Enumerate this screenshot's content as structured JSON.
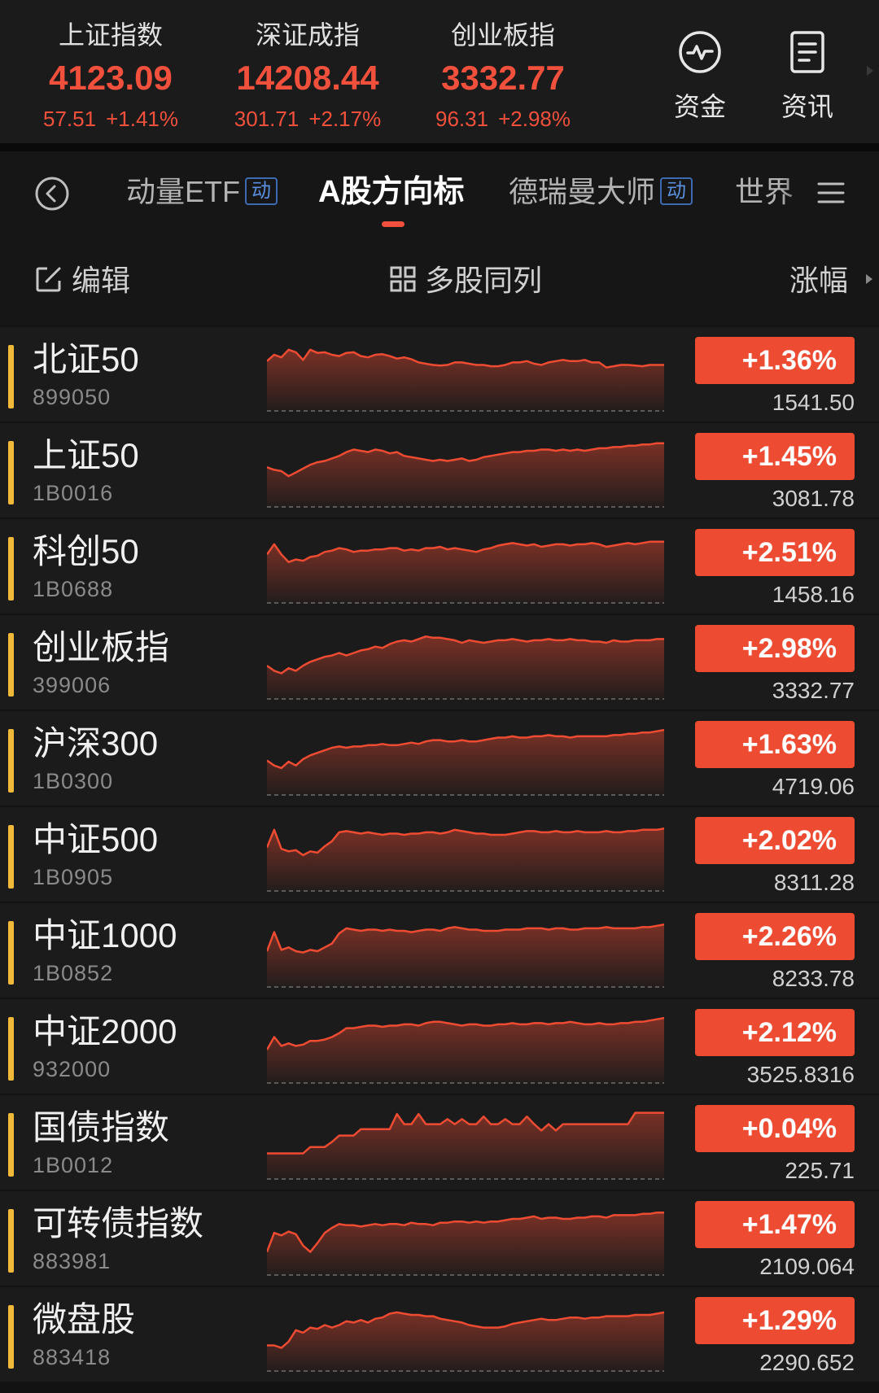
{
  "indices": [
    {
      "name": "上证指数",
      "price": "4123.09",
      "change": "57.51",
      "percent": "+1.41%"
    },
    {
      "name": "深证成指",
      "price": "14208.44",
      "change": "301.71",
      "percent": "+2.17%"
    },
    {
      "name": "创业板指",
      "price": "3332.77",
      "change": "96.31",
      "percent": "+2.98%"
    }
  ],
  "top_buttons": {
    "funds": "资金",
    "news": "资讯"
  },
  "tabs": [
    {
      "label": "动量ETF",
      "badge": "动"
    },
    {
      "label": "A股方向标",
      "badge": ""
    },
    {
      "label": "德瑞曼大师",
      "badge": "动"
    },
    {
      "label": "世界",
      "badge": ""
    }
  ],
  "toolbar": {
    "edit": "编辑",
    "multi": "多股同列",
    "sort": "涨幅"
  },
  "colors": {
    "up": "#ee4b33",
    "accent_bar": "#f0b93a",
    "badge_blue": "#3d6bb3"
  },
  "stocks": [
    {
      "name": "北证50",
      "code": "899050",
      "percent": "+1.36%",
      "price": "1541.50",
      "trend": [
        0.72,
        0.82,
        0.78,
        0.9,
        0.86,
        0.74,
        0.9,
        0.85,
        0.86,
        0.82,
        0.8,
        0.85,
        0.86,
        0.8,
        0.78,
        0.82,
        0.83,
        0.8,
        0.76,
        0.78,
        0.75,
        0.7,
        0.68,
        0.66,
        0.65,
        0.66,
        0.7,
        0.7,
        0.68,
        0.66,
        0.66,
        0.64,
        0.64,
        0.66,
        0.7,
        0.7,
        0.72,
        0.68,
        0.66,
        0.7,
        0.72,
        0.74,
        0.72,
        0.72,
        0.74,
        0.7,
        0.7,
        0.62,
        0.64,
        0.66,
        0.66,
        0.65,
        0.64,
        0.66,
        0.66,
        0.66
      ]
    },
    {
      "name": "上证50",
      "code": "1B0016",
      "percent": "+1.45%",
      "price": "3081.78",
      "trend": [
        0.56,
        0.52,
        0.5,
        0.42,
        0.48,
        0.54,
        0.6,
        0.64,
        0.66,
        0.7,
        0.74,
        0.8,
        0.84,
        0.82,
        0.8,
        0.84,
        0.82,
        0.78,
        0.8,
        0.74,
        0.72,
        0.7,
        0.68,
        0.66,
        0.68,
        0.66,
        0.68,
        0.7,
        0.66,
        0.68,
        0.72,
        0.74,
        0.76,
        0.78,
        0.8,
        0.8,
        0.82,
        0.82,
        0.84,
        0.84,
        0.82,
        0.84,
        0.82,
        0.84,
        0.82,
        0.84,
        0.86,
        0.86,
        0.88,
        0.88,
        0.9,
        0.9,
        0.92,
        0.92,
        0.94,
        0.94
      ]
    },
    {
      "name": "科创50",
      "code": "1B0688",
      "percent": "+2.51%",
      "price": "1458.16",
      "trend": [
        0.7,
        0.86,
        0.7,
        0.58,
        0.62,
        0.6,
        0.66,
        0.68,
        0.74,
        0.76,
        0.8,
        0.78,
        0.74,
        0.76,
        0.76,
        0.78,
        0.78,
        0.8,
        0.8,
        0.76,
        0.78,
        0.76,
        0.8,
        0.8,
        0.82,
        0.78,
        0.8,
        0.78,
        0.76,
        0.74,
        0.78,
        0.8,
        0.84,
        0.86,
        0.88,
        0.86,
        0.84,
        0.86,
        0.82,
        0.84,
        0.86,
        0.86,
        0.84,
        0.86,
        0.86,
        0.88,
        0.86,
        0.82,
        0.84,
        0.86,
        0.88,
        0.86,
        0.88,
        0.9,
        0.9,
        0.9
      ]
    },
    {
      "name": "创业板指",
      "code": "399006",
      "percent": "+2.98%",
      "price": "3332.77",
      "trend": [
        0.46,
        0.38,
        0.34,
        0.42,
        0.38,
        0.46,
        0.52,
        0.56,
        0.6,
        0.62,
        0.66,
        0.62,
        0.66,
        0.7,
        0.72,
        0.76,
        0.74,
        0.8,
        0.84,
        0.86,
        0.84,
        0.88,
        0.92,
        0.9,
        0.9,
        0.88,
        0.86,
        0.82,
        0.86,
        0.84,
        0.82,
        0.84,
        0.86,
        0.86,
        0.88,
        0.86,
        0.84,
        0.86,
        0.86,
        0.88,
        0.86,
        0.86,
        0.88,
        0.86,
        0.86,
        0.84,
        0.84,
        0.82,
        0.86,
        0.84,
        0.84,
        0.86,
        0.86,
        0.86,
        0.88,
        0.88
      ]
    },
    {
      "name": "沪深300",
      "code": "1B0300",
      "percent": "+1.63%",
      "price": "4719.06",
      "trend": [
        0.48,
        0.4,
        0.36,
        0.46,
        0.4,
        0.5,
        0.56,
        0.6,
        0.64,
        0.68,
        0.7,
        0.68,
        0.7,
        0.7,
        0.72,
        0.72,
        0.74,
        0.72,
        0.72,
        0.74,
        0.76,
        0.74,
        0.78,
        0.8,
        0.8,
        0.78,
        0.78,
        0.8,
        0.78,
        0.78,
        0.8,
        0.82,
        0.84,
        0.84,
        0.86,
        0.84,
        0.84,
        0.86,
        0.86,
        0.88,
        0.86,
        0.86,
        0.84,
        0.86,
        0.86,
        0.86,
        0.86,
        0.86,
        0.88,
        0.88,
        0.9,
        0.9,
        0.92,
        0.92,
        0.94,
        0.96
      ]
    },
    {
      "name": "中证500",
      "code": "1B0905",
      "percent": "+2.02%",
      "price": "8311.28",
      "trend": [
        0.62,
        0.9,
        0.6,
        0.56,
        0.58,
        0.5,
        0.56,
        0.54,
        0.64,
        0.72,
        0.86,
        0.88,
        0.86,
        0.84,
        0.86,
        0.84,
        0.82,
        0.84,
        0.84,
        0.82,
        0.84,
        0.84,
        0.86,
        0.86,
        0.84,
        0.86,
        0.9,
        0.88,
        0.86,
        0.84,
        0.84,
        0.82,
        0.82,
        0.82,
        0.84,
        0.86,
        0.88,
        0.88,
        0.86,
        0.86,
        0.88,
        0.86,
        0.86,
        0.88,
        0.86,
        0.86,
        0.86,
        0.88,
        0.86,
        0.86,
        0.88,
        0.88,
        0.9,
        0.9,
        0.9,
        0.92
      ]
    },
    {
      "name": "中证1000",
      "code": "1B0852",
      "percent": "+2.26%",
      "price": "8233.78",
      "trend": [
        0.5,
        0.8,
        0.52,
        0.56,
        0.5,
        0.48,
        0.52,
        0.5,
        0.56,
        0.62,
        0.78,
        0.86,
        0.84,
        0.82,
        0.84,
        0.84,
        0.82,
        0.84,
        0.82,
        0.82,
        0.8,
        0.82,
        0.84,
        0.84,
        0.82,
        0.86,
        0.88,
        0.86,
        0.84,
        0.84,
        0.82,
        0.82,
        0.82,
        0.84,
        0.84,
        0.84,
        0.86,
        0.86,
        0.86,
        0.84,
        0.86,
        0.86,
        0.84,
        0.84,
        0.86,
        0.86,
        0.86,
        0.88,
        0.86,
        0.86,
        0.86,
        0.86,
        0.88,
        0.88,
        0.9,
        0.92
      ]
    },
    {
      "name": "中证2000",
      "code": "932000",
      "percent": "+2.12%",
      "price": "3525.8316",
      "trend": [
        0.46,
        0.66,
        0.52,
        0.56,
        0.52,
        0.54,
        0.6,
        0.6,
        0.62,
        0.66,
        0.72,
        0.8,
        0.8,
        0.82,
        0.84,
        0.84,
        0.82,
        0.84,
        0.84,
        0.86,
        0.86,
        0.84,
        0.88,
        0.9,
        0.9,
        0.88,
        0.86,
        0.84,
        0.86,
        0.86,
        0.84,
        0.84,
        0.86,
        0.86,
        0.88,
        0.86,
        0.86,
        0.88,
        0.88,
        0.86,
        0.88,
        0.88,
        0.9,
        0.88,
        0.86,
        0.86,
        0.88,
        0.86,
        0.86,
        0.88,
        0.88,
        0.9,
        0.9,
        0.92,
        0.94,
        0.96
      ]
    },
    {
      "name": "国债指数",
      "code": "1B0012",
      "percent": "+0.04%",
      "price": "225.71",
      "trend": [
        0.34,
        0.34,
        0.34,
        0.34,
        0.34,
        0.34,
        0.44,
        0.44,
        0.44,
        0.52,
        0.62,
        0.62,
        0.62,
        0.72,
        0.72,
        0.72,
        0.72,
        0.72,
        0.96,
        0.8,
        0.8,
        0.96,
        0.8,
        0.8,
        0.8,
        0.88,
        0.8,
        0.88,
        0.8,
        0.8,
        0.92,
        0.8,
        0.8,
        0.88,
        0.8,
        0.8,
        0.92,
        0.8,
        0.7,
        0.8,
        0.7,
        0.8,
        0.8,
        0.8,
        0.8,
        0.8,
        0.8,
        0.8,
        0.8,
        0.8,
        0.8,
        0.98,
        0.98,
        0.98,
        0.98,
        0.98
      ]
    },
    {
      "name": "可转债指数",
      "code": "883981",
      "percent": "+1.47%",
      "price": "2109.064",
      "trend": [
        0.3,
        0.6,
        0.56,
        0.62,
        0.58,
        0.4,
        0.3,
        0.44,
        0.6,
        0.68,
        0.74,
        0.72,
        0.72,
        0.7,
        0.72,
        0.74,
        0.72,
        0.74,
        0.74,
        0.72,
        0.76,
        0.74,
        0.74,
        0.72,
        0.76,
        0.76,
        0.78,
        0.78,
        0.76,
        0.78,
        0.76,
        0.78,
        0.78,
        0.8,
        0.82,
        0.82,
        0.84,
        0.86,
        0.82,
        0.84,
        0.84,
        0.82,
        0.82,
        0.84,
        0.84,
        0.86,
        0.86,
        0.84,
        0.88,
        0.88,
        0.88,
        0.88,
        0.9,
        0.9,
        0.92,
        0.92
      ]
    },
    {
      "name": "微盘股",
      "code": "883418",
      "percent": "+1.29%",
      "price": "2290.652",
      "trend": [
        0.34,
        0.34,
        0.3,
        0.4,
        0.58,
        0.54,
        0.62,
        0.6,
        0.66,
        0.62,
        0.66,
        0.72,
        0.7,
        0.74,
        0.7,
        0.76,
        0.78,
        0.84,
        0.86,
        0.84,
        0.82,
        0.82,
        0.8,
        0.8,
        0.76,
        0.74,
        0.72,
        0.7,
        0.66,
        0.64,
        0.62,
        0.62,
        0.62,
        0.64,
        0.68,
        0.7,
        0.72,
        0.74,
        0.76,
        0.74,
        0.74,
        0.76,
        0.78,
        0.78,
        0.76,
        0.78,
        0.78,
        0.8,
        0.8,
        0.8,
        0.8,
        0.82,
        0.82,
        0.82,
        0.84,
        0.86
      ]
    }
  ]
}
